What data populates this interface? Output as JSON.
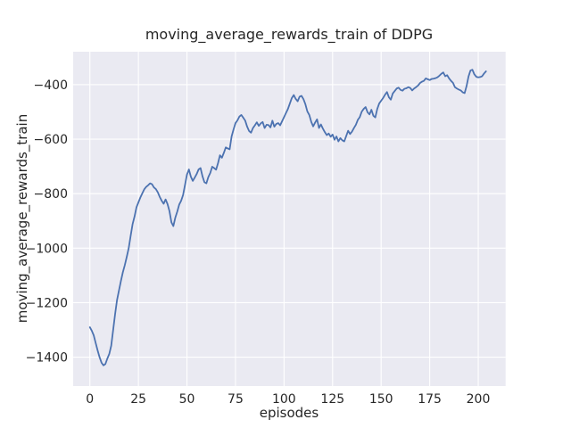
{
  "figure": {
    "title": "moving_average_rewards_train of DDPG",
    "xlabel": "episodes",
    "ylabel": "moving_average_rewards_train",
    "colors": {
      "figure_background": "#ffffff",
      "axes_background": "#eaeaf2",
      "grid": "#ffffff",
      "line": "#4c72b0",
      "text": "#262626"
    }
  },
  "chart_data": {
    "type": "line",
    "title": "moving_average_rewards_train of DDPG",
    "xlabel": "episodes",
    "ylabel": "moving_average_rewards_train",
    "legend": null,
    "grid": true,
    "xlim": [
      -8.6,
      214.1
    ],
    "ylim": [
      -1506,
      -279
    ],
    "x_ticks": [
      0,
      25,
      50,
      75,
      100,
      125,
      150,
      175,
      200
    ],
    "x_tick_labels": [
      "0",
      "25",
      "50",
      "75",
      "100",
      "125",
      "150",
      "175",
      "200"
    ],
    "y_ticks": [
      -400,
      -600,
      -800,
      -1000,
      -1200,
      -1400
    ],
    "y_tick_labels": [
      "−400",
      "−600",
      "−800",
      "−1000",
      "−1200",
      "−1400"
    ],
    "x_start": 0,
    "x_step": 1,
    "series": [
      {
        "name": "moving_average_rewards_train",
        "color": "#4c72b0",
        "values": [
          -1290,
          -1303,
          -1320,
          -1348,
          -1375,
          -1400,
          -1420,
          -1430,
          -1425,
          -1405,
          -1388,
          -1358,
          -1300,
          -1242,
          -1190,
          -1155,
          -1120,
          -1088,
          -1062,
          -1032,
          -1000,
          -955,
          -912,
          -884,
          -850,
          -832,
          -814,
          -799,
          -784,
          -775,
          -769,
          -762,
          -765,
          -777,
          -783,
          -795,
          -812,
          -826,
          -837,
          -821,
          -838,
          -864,
          -905,
          -919,
          -888,
          -866,
          -840,
          -826,
          -805,
          -768,
          -730,
          -711,
          -737,
          -753,
          -741,
          -728,
          -711,
          -706,
          -736,
          -758,
          -762,
          -739,
          -724,
          -701,
          -706,
          -712,
          -688,
          -659,
          -668,
          -650,
          -630,
          -634,
          -637,
          -590,
          -564,
          -541,
          -531,
          -517,
          -511,
          -521,
          -532,
          -554,
          -570,
          -576,
          -559,
          -549,
          -538,
          -551,
          -542,
          -537,
          -559,
          -547,
          -548,
          -557,
          -532,
          -554,
          -544,
          -541,
          -549,
          -534,
          -519,
          -504,
          -489,
          -469,
          -449,
          -438,
          -452,
          -461,
          -444,
          -441,
          -453,
          -472,
          -498,
          -511,
          -536,
          -553,
          -539,
          -527,
          -559,
          -546,
          -561,
          -574,
          -585,
          -579,
          -591,
          -583,
          -602,
          -590,
          -608,
          -596,
          -604,
          -608,
          -589,
          -569,
          -581,
          -572,
          -559,
          -547,
          -529,
          -519,
          -499,
          -489,
          -482,
          -501,
          -509,
          -492,
          -514,
          -520,
          -489,
          -469,
          -459,
          -449,
          -437,
          -427,
          -446,
          -455,
          -432,
          -423,
          -414,
          -411,
          -419,
          -422,
          -415,
          -413,
          -409,
          -412,
          -421,
          -414,
          -409,
          -403,
          -394,
          -389,
          -386,
          -377,
          -380,
          -383,
          -379,
          -378,
          -376,
          -373,
          -367,
          -360,
          -355,
          -369,
          -365,
          -377,
          -386,
          -393,
          -409,
          -414,
          -418,
          -421,
          -428,
          -431,
          -405,
          -370,
          -348,
          -345,
          -362,
          -371,
          -373,
          -372,
          -369,
          -359,
          -351
        ]
      }
    ]
  }
}
